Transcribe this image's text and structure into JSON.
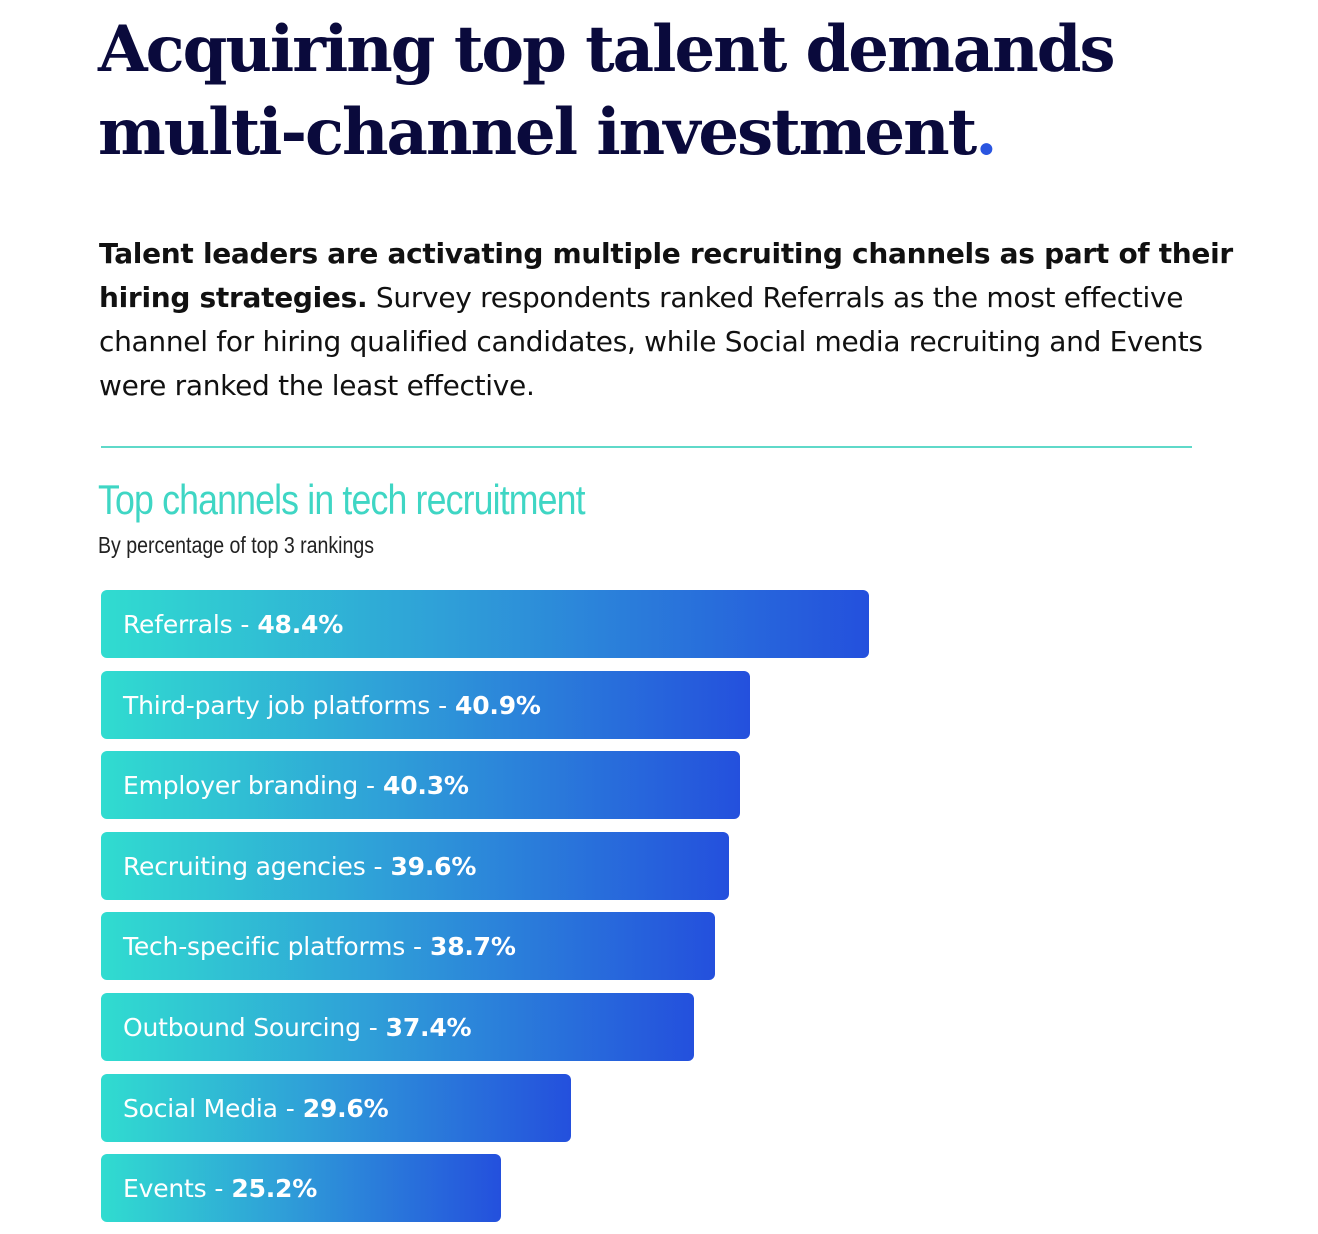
{
  "headline": {
    "line1": "Acquiring top talent demands",
    "line2": "multi-channel investment",
    "dot": "."
  },
  "intro": {
    "bold": "Talent leaders are activating multiple recruiting channels as part of their hiring strategies.",
    "rest": " Survey respondents ranked Referrals as the most effective channel for hiring qualified candidates, while Social media recruiting and Events were ranked the least effective."
  },
  "colors": {
    "headline": "#0a0a3c",
    "accent_dot": "#2a55e0",
    "teal": "#3fd6c4",
    "gradient_start": "#30dcd0",
    "gradient_end": "#2450dd"
  },
  "chart_data": {
    "type": "bar",
    "orientation": "horizontal",
    "title": "Top channels in tech recruitment",
    "subtitle": "By percentage of top 3 rankings",
    "separator": " - ",
    "unit": "%",
    "categories": [
      "Referrals",
      "Third-party job platforms",
      "Employer branding",
      "Recruiting agencies",
      "Tech-specific platforms",
      "Outbound Sourcing",
      "Social Media",
      "Events"
    ],
    "values": [
      48.4,
      40.9,
      40.3,
      39.6,
      38.7,
      37.4,
      29.6,
      25.2
    ],
    "value_labels": [
      "48.4%",
      "40.9%",
      "40.3%",
      "39.6%",
      "38.7%",
      "37.4%",
      "29.6%",
      "25.2%"
    ],
    "xlim": [
      0,
      48.4
    ],
    "grid": false,
    "legend": "none"
  }
}
